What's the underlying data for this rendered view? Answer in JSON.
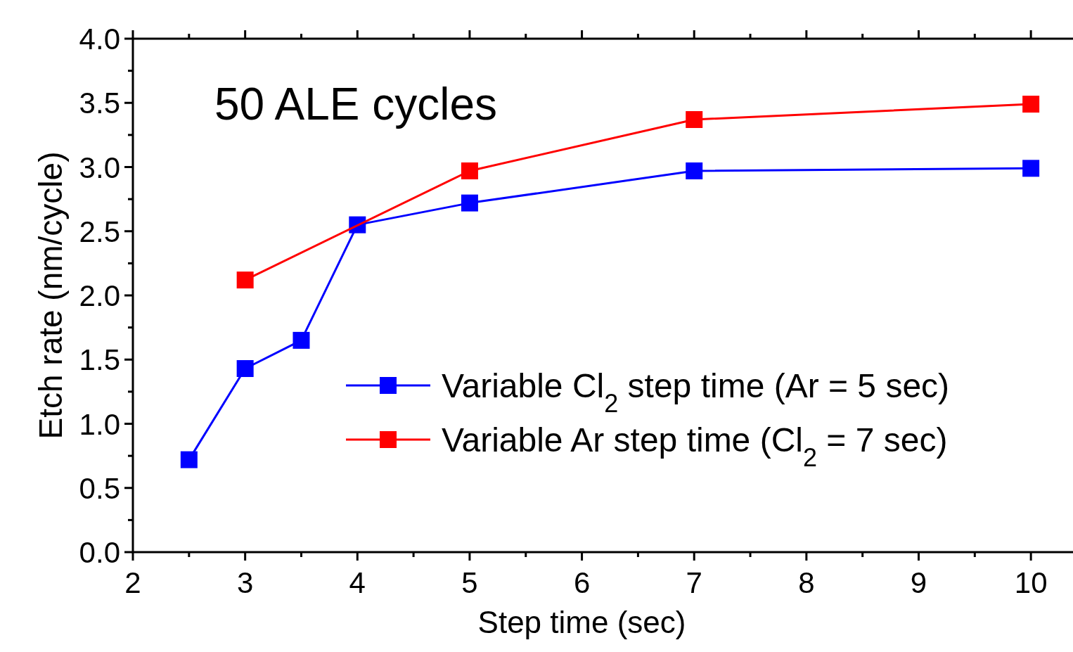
{
  "chart_data": {
    "type": "line",
    "xlabel": "Step time (sec)",
    "ylabel": "Etch rate (nm/cycle)",
    "annotations": [
      "50 ALE cycles"
    ],
    "xlim": [
      2,
      10.4
    ],
    "xticks": [
      2,
      3,
      4,
      5,
      6,
      7,
      8,
      9,
      10
    ],
    "ylim": [
      0,
      4
    ],
    "yticks": [
      {
        "value": 0,
        "label": "0.0"
      },
      {
        "value": 0.5,
        "label": "0.5"
      },
      {
        "value": 1,
        "label": "1.0"
      },
      {
        "value": 1.5,
        "label": "1.5"
      },
      {
        "value": 2,
        "label": "2.0"
      },
      {
        "value": 2.5,
        "label": "2.5"
      },
      {
        "value": 3,
        "label": "3.0"
      },
      {
        "value": 3.5,
        "label": "3.5"
      },
      {
        "value": 4,
        "label": "4.0"
      }
    ],
    "marker": "square",
    "line_style": "solid",
    "legend": "bottom right",
    "grid": false,
    "series": [
      {
        "name": "Variable Cl$_{2}$ step time (Ar = 5 sec)",
        "color": "#0000ff",
        "x": [
          2.5,
          3,
          3.5,
          4,
          5,
          7,
          10
        ],
        "values": [
          0.72,
          1.43,
          1.65,
          2.55,
          2.72,
          2.97,
          2.99
        ]
      },
      {
        "name": "Variable Ar step time (Cl$_{2}$ = 7 sec)",
        "color": "#ff0000",
        "x": [
          3,
          5,
          7,
          10
        ],
        "values": [
          2.12,
          2.97,
          3.37,
          3.49
        ]
      }
    ]
  }
}
